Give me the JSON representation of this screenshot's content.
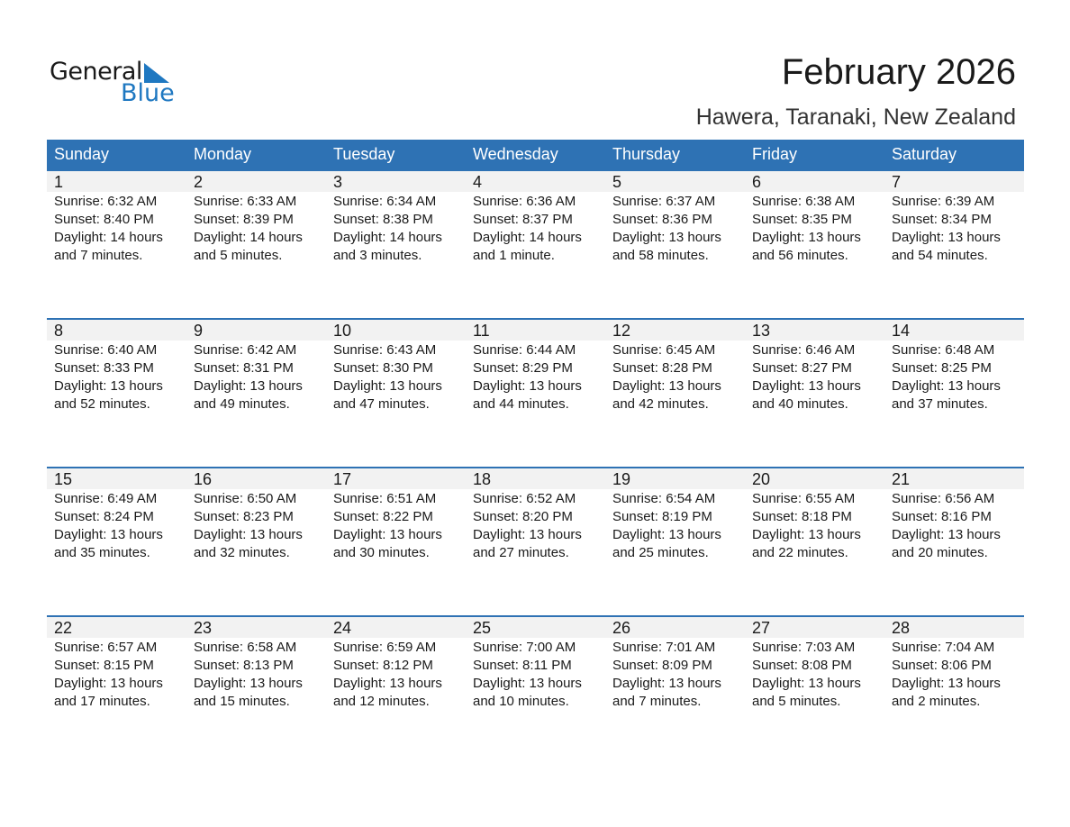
{
  "logo": {
    "general": "General",
    "blue": "Blue",
    "color": "#1f78c1"
  },
  "title": "February 2026",
  "subtitle": "Hawera, Taranaki, New Zealand",
  "colors": {
    "header": "#2e72b4",
    "day_row": "#f2f2f2"
  },
  "weekdays": [
    "Sunday",
    "Monday",
    "Tuesday",
    "Wednesday",
    "Thursday",
    "Friday",
    "Saturday"
  ],
  "weeks": [
    [
      {
        "day": "1",
        "sunrise": "Sunrise: 6:32 AM",
        "sunset": "Sunset: 8:40 PM",
        "daylight": "Daylight: 14 hours",
        "minutes": "and 7 minutes."
      },
      {
        "day": "2",
        "sunrise": "Sunrise: 6:33 AM",
        "sunset": "Sunset: 8:39 PM",
        "daylight": "Daylight: 14 hours",
        "minutes": "and 5 minutes."
      },
      {
        "day": "3",
        "sunrise": "Sunrise: 6:34 AM",
        "sunset": "Sunset: 8:38 PM",
        "daylight": "Daylight: 14 hours",
        "minutes": "and 3 minutes."
      },
      {
        "day": "4",
        "sunrise": "Sunrise: 6:36 AM",
        "sunset": "Sunset: 8:37 PM",
        "daylight": "Daylight: 14 hours",
        "minutes": "and 1 minute."
      },
      {
        "day": "5",
        "sunrise": "Sunrise: 6:37 AM",
        "sunset": "Sunset: 8:36 PM",
        "daylight": "Daylight: 13 hours",
        "minutes": "and 58 minutes."
      },
      {
        "day": "6",
        "sunrise": "Sunrise: 6:38 AM",
        "sunset": "Sunset: 8:35 PM",
        "daylight": "Daylight: 13 hours",
        "minutes": "and 56 minutes."
      },
      {
        "day": "7",
        "sunrise": "Sunrise: 6:39 AM",
        "sunset": "Sunset: 8:34 PM",
        "daylight": "Daylight: 13 hours",
        "minutes": "and 54 minutes."
      }
    ],
    [
      {
        "day": "8",
        "sunrise": "Sunrise: 6:40 AM",
        "sunset": "Sunset: 8:33 PM",
        "daylight": "Daylight: 13 hours",
        "minutes": "and 52 minutes."
      },
      {
        "day": "9",
        "sunrise": "Sunrise: 6:42 AM",
        "sunset": "Sunset: 8:31 PM",
        "daylight": "Daylight: 13 hours",
        "minutes": "and 49 minutes."
      },
      {
        "day": "10",
        "sunrise": "Sunrise: 6:43 AM",
        "sunset": "Sunset: 8:30 PM",
        "daylight": "Daylight: 13 hours",
        "minutes": "and 47 minutes."
      },
      {
        "day": "11",
        "sunrise": "Sunrise: 6:44 AM",
        "sunset": "Sunset: 8:29 PM",
        "daylight": "Daylight: 13 hours",
        "minutes": "and 44 minutes."
      },
      {
        "day": "12",
        "sunrise": "Sunrise: 6:45 AM",
        "sunset": "Sunset: 8:28 PM",
        "daylight": "Daylight: 13 hours",
        "minutes": "and 42 minutes."
      },
      {
        "day": "13",
        "sunrise": "Sunrise: 6:46 AM",
        "sunset": "Sunset: 8:27 PM",
        "daylight": "Daylight: 13 hours",
        "minutes": "and 40 minutes."
      },
      {
        "day": "14",
        "sunrise": "Sunrise: 6:48 AM",
        "sunset": "Sunset: 8:25 PM",
        "daylight": "Daylight: 13 hours",
        "minutes": "and 37 minutes."
      }
    ],
    [
      {
        "day": "15",
        "sunrise": "Sunrise: 6:49 AM",
        "sunset": "Sunset: 8:24 PM",
        "daylight": "Daylight: 13 hours",
        "minutes": "and 35 minutes."
      },
      {
        "day": "16",
        "sunrise": "Sunrise: 6:50 AM",
        "sunset": "Sunset: 8:23 PM",
        "daylight": "Daylight: 13 hours",
        "minutes": "and 32 minutes."
      },
      {
        "day": "17",
        "sunrise": "Sunrise: 6:51 AM",
        "sunset": "Sunset: 8:22 PM",
        "daylight": "Daylight: 13 hours",
        "minutes": "and 30 minutes."
      },
      {
        "day": "18",
        "sunrise": "Sunrise: 6:52 AM",
        "sunset": "Sunset: 8:20 PM",
        "daylight": "Daylight: 13 hours",
        "minutes": "and 27 minutes."
      },
      {
        "day": "19",
        "sunrise": "Sunrise: 6:54 AM",
        "sunset": "Sunset: 8:19 PM",
        "daylight": "Daylight: 13 hours",
        "minutes": "and 25 minutes."
      },
      {
        "day": "20",
        "sunrise": "Sunrise: 6:55 AM",
        "sunset": "Sunset: 8:18 PM",
        "daylight": "Daylight: 13 hours",
        "minutes": "and 22 minutes."
      },
      {
        "day": "21",
        "sunrise": "Sunrise: 6:56 AM",
        "sunset": "Sunset: 8:16 PM",
        "daylight": "Daylight: 13 hours",
        "minutes": "and 20 minutes."
      }
    ],
    [
      {
        "day": "22",
        "sunrise": "Sunrise: 6:57 AM",
        "sunset": "Sunset: 8:15 PM",
        "daylight": "Daylight: 13 hours",
        "minutes": "and 17 minutes."
      },
      {
        "day": "23",
        "sunrise": "Sunrise: 6:58 AM",
        "sunset": "Sunset: 8:13 PM",
        "daylight": "Daylight: 13 hours",
        "minutes": "and 15 minutes."
      },
      {
        "day": "24",
        "sunrise": "Sunrise: 6:59 AM",
        "sunset": "Sunset: 8:12 PM",
        "daylight": "Daylight: 13 hours",
        "minutes": "and 12 minutes."
      },
      {
        "day": "25",
        "sunrise": "Sunrise: 7:00 AM",
        "sunset": "Sunset: 8:11 PM",
        "daylight": "Daylight: 13 hours",
        "minutes": "and 10 minutes."
      },
      {
        "day": "26",
        "sunrise": "Sunrise: 7:01 AM",
        "sunset": "Sunset: 8:09 PM",
        "daylight": "Daylight: 13 hours",
        "minutes": "and 7 minutes."
      },
      {
        "day": "27",
        "sunrise": "Sunrise: 7:03 AM",
        "sunset": "Sunset: 8:08 PM",
        "daylight": "Daylight: 13 hours",
        "minutes": "and 5 minutes."
      },
      {
        "day": "28",
        "sunrise": "Sunrise: 7:04 AM",
        "sunset": "Sunset: 8:06 PM",
        "daylight": "Daylight: 13 hours",
        "minutes": "and 2 minutes."
      }
    ]
  ]
}
